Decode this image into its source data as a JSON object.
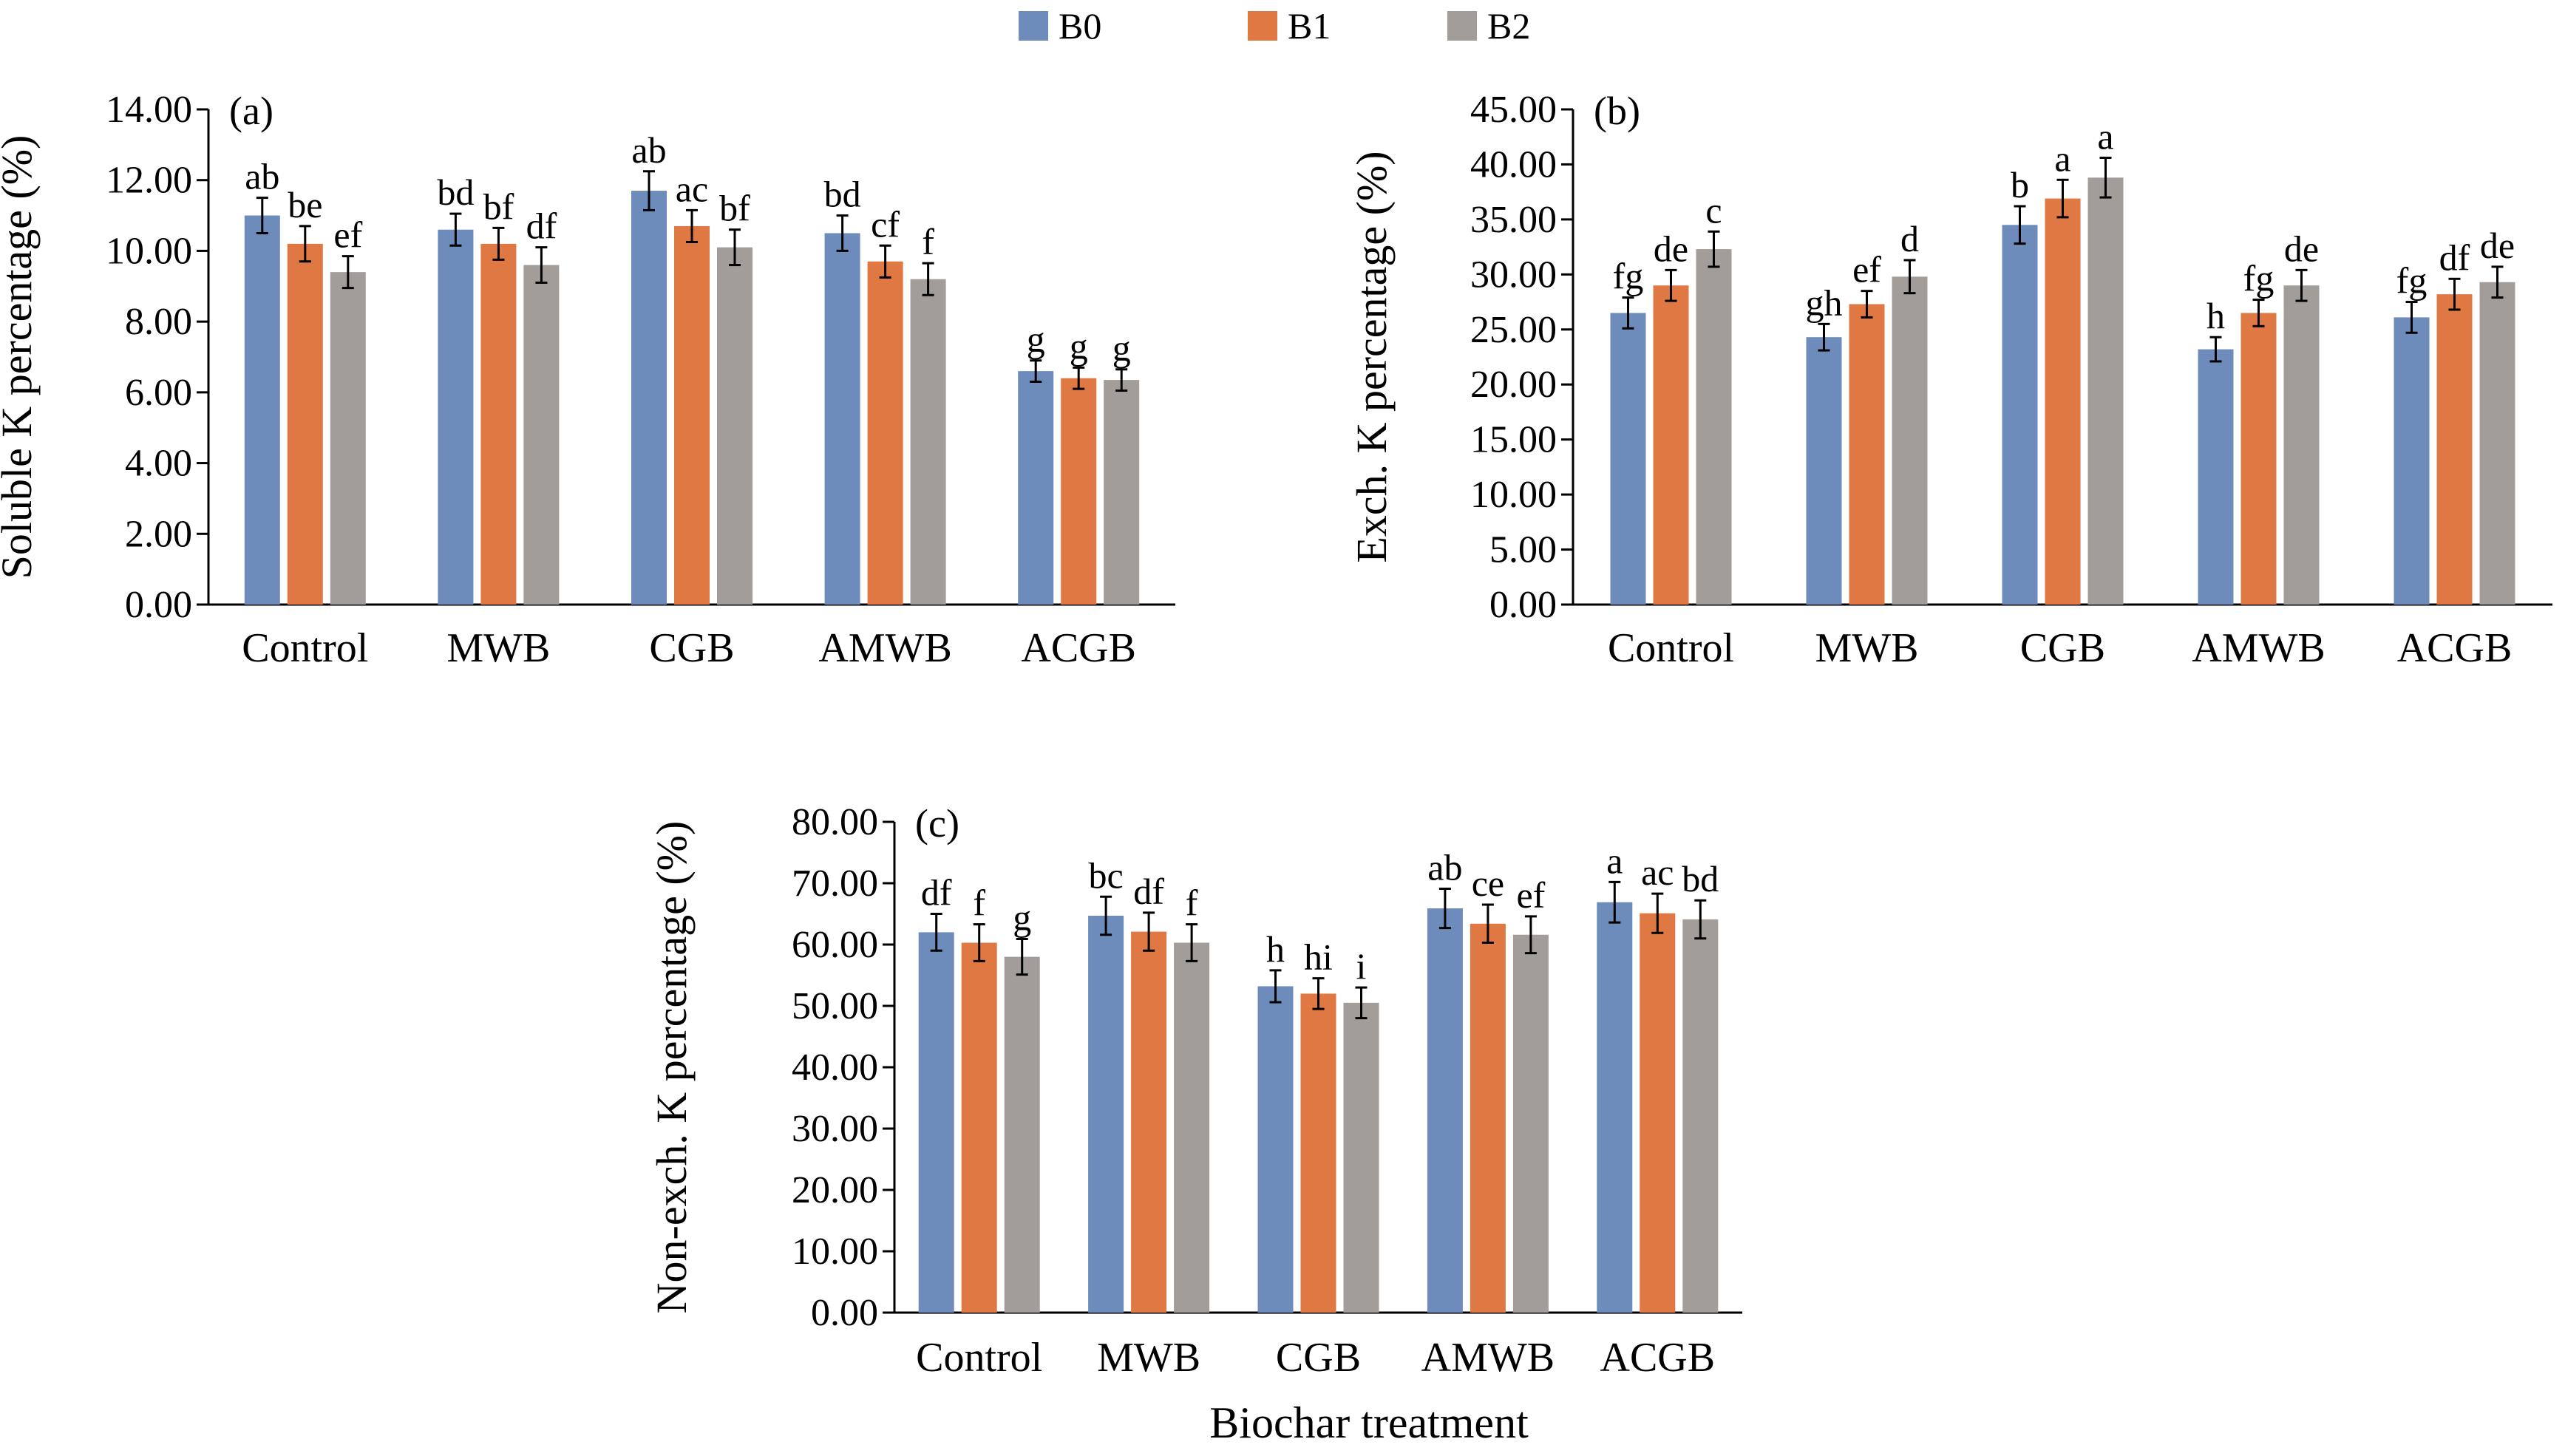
{
  "legend": [
    {
      "label": "B0",
      "color": "#6E8CBB"
    },
    {
      "label": "B1",
      "color": "#E07843"
    },
    {
      "label": "B2",
      "color": "#A39D99"
    }
  ],
  "xlabel": "Biochar treatment",
  "chart_data": [
    {
      "type": "bar",
      "panel": "(a)",
      "ylabel": "Soluble K percentage (%)",
      "categories": [
        "Control",
        "MWB",
        "CGB",
        "AMWB",
        "ACGB"
      ],
      "ylim": [
        0,
        14
      ],
      "yticks": [
        "0.00",
        "2.00",
        "4.00",
        "6.00",
        "8.00",
        "10.00",
        "12.00",
        "14.00"
      ],
      "series": [
        {
          "name": "B0",
          "values": [
            11.0,
            10.6,
            11.7,
            10.5,
            6.6
          ],
          "errors": [
            0.5,
            0.45,
            0.55,
            0.5,
            0.3
          ],
          "letters": [
            "ab",
            "bd",
            "ab",
            "bd",
            "g"
          ]
        },
        {
          "name": "B1",
          "values": [
            10.2,
            10.2,
            10.7,
            9.7,
            6.4
          ],
          "errors": [
            0.5,
            0.45,
            0.45,
            0.45,
            0.3
          ],
          "letters": [
            "be",
            "bf",
            "ac",
            "cf",
            "g"
          ]
        },
        {
          "name": "B2",
          "values": [
            9.4,
            9.6,
            10.1,
            9.2,
            6.35
          ],
          "errors": [
            0.45,
            0.5,
            0.5,
            0.45,
            0.3
          ],
          "letters": [
            "ef",
            "df",
            "bf",
            "f",
            "g"
          ]
        }
      ]
    },
    {
      "type": "bar",
      "panel": "(b)",
      "ylabel": "Exch. K percentage (%)",
      "categories": [
        "Control",
        "MWB",
        "CGB",
        "AMWB",
        "ACGB"
      ],
      "ylim": [
        0,
        45
      ],
      "yticks": [
        "0.00",
        "5.00",
        "10.00",
        "15.00",
        "20.00",
        "25.00",
        "30.00",
        "35.00",
        "40.00",
        "45.00"
      ],
      "series": [
        {
          "name": "B0",
          "values": [
            26.5,
            24.3,
            34.5,
            23.2,
            26.1
          ],
          "errors": [
            1.4,
            1.2,
            1.7,
            1.1,
            1.4
          ],
          "letters": [
            "fg",
            "gh",
            "b",
            "h",
            "fg"
          ]
        },
        {
          "name": "B1",
          "values": [
            29.0,
            27.3,
            36.9,
            26.5,
            28.2
          ],
          "errors": [
            1.4,
            1.2,
            1.7,
            1.2,
            1.4
          ],
          "letters": [
            "de",
            "ef",
            "a",
            "fg",
            "df"
          ]
        },
        {
          "name": "B2",
          "values": [
            32.3,
            29.8,
            38.8,
            29.0,
            29.3
          ],
          "errors": [
            1.6,
            1.5,
            1.8,
            1.4,
            1.4
          ],
          "letters": [
            "c",
            "d",
            "a",
            "de",
            "de"
          ]
        }
      ]
    },
    {
      "type": "bar",
      "panel": "(c)",
      "ylabel": "Non-exch. K percentage (%)",
      "categories": [
        "Control",
        "MWB",
        "CGB",
        "AMWB",
        "ACGB"
      ],
      "ylim": [
        0,
        80
      ],
      "yticks": [
        "0.00",
        "10.00",
        "20.00",
        "30.00",
        "40.00",
        "50.00",
        "60.00",
        "70.00",
        "80.00"
      ],
      "series": [
        {
          "name": "B0",
          "values": [
            62.0,
            64.7,
            53.2,
            65.9,
            66.9
          ],
          "errors": [
            3.0,
            3.1,
            2.6,
            3.2,
            3.3
          ],
          "letters": [
            "df",
            "bc",
            "h",
            "ab",
            "a"
          ]
        },
        {
          "name": "B1",
          "values": [
            60.3,
            62.1,
            52.0,
            63.4,
            65.1
          ],
          "errors": [
            3.0,
            3.1,
            2.5,
            3.1,
            3.2
          ],
          "letters": [
            "f",
            "df",
            "hi",
            "ce",
            "ac"
          ]
        },
        {
          "name": "B2",
          "values": [
            58.0,
            60.3,
            50.5,
            61.6,
            64.1
          ],
          "errors": [
            2.9,
            3.0,
            2.5,
            3.0,
            3.1
          ],
          "letters": [
            "g",
            "f",
            "i",
            "ef",
            "bd"
          ]
        }
      ]
    }
  ]
}
